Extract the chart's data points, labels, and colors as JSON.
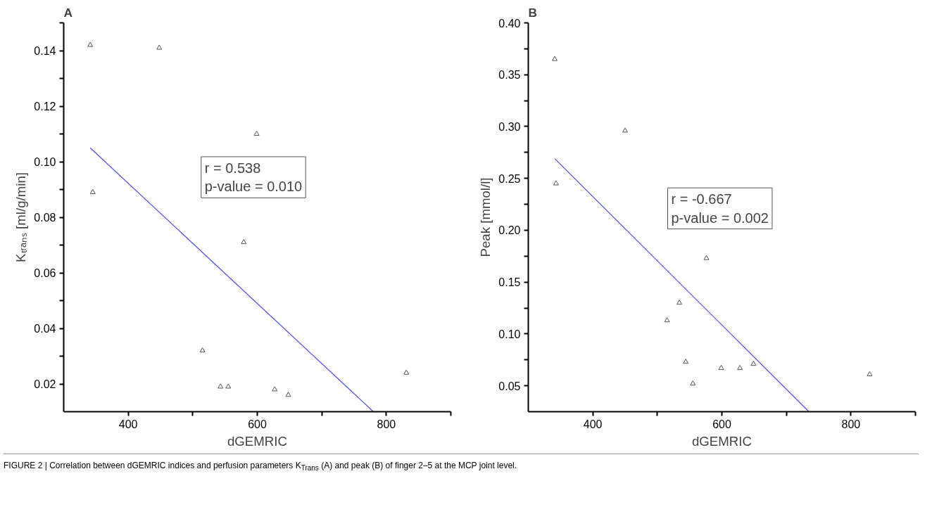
{
  "chart_data": [
    {
      "type": "scatter",
      "title": "A",
      "xlabel": "dGEMRIC",
      "ylabel": "Kₜᵣₐₙₛ [ml/g/min]",
      "xlim": [
        300,
        900
      ],
      "xticks": [
        {
          "value": 400,
          "label": "400"
        },
        {
          "value": 500,
          "label": null
        },
        {
          "value": 600,
          "label": "600"
        },
        {
          "value": 700,
          "label": null
        },
        {
          "value": 800,
          "label": "800"
        },
        {
          "value": 900,
          "label": null
        }
      ],
      "ylim": [
        0.01,
        0.15
      ],
      "yticks": [
        {
          "value": 0.02,
          "label": "0.02"
        },
        {
          "value": 0.03,
          "label": null
        },
        {
          "value": 0.04,
          "label": "0.04"
        },
        {
          "value": 0.05,
          "label": null
        },
        {
          "value": 0.06,
          "label": "0.06"
        },
        {
          "value": 0.07,
          "label": null
        },
        {
          "value": 0.08,
          "label": "0.08"
        },
        {
          "value": 0.09,
          "label": null
        },
        {
          "value": 0.1,
          "label": "0.10"
        },
        {
          "value": 0.11,
          "label": null
        },
        {
          "value": 0.12,
          "label": "0.12"
        },
        {
          "value": 0.13,
          "label": null
        },
        {
          "value": 0.14,
          "label": "0.14"
        },
        {
          "value": 0.15,
          "label": null
        }
      ],
      "grid": false,
      "series": [
        {
          "marker": "triangle",
          "color": "#555555",
          "x": [
            341,
            448,
            599,
            345,
            579,
            515,
            543,
            555,
            627,
            648,
            831
          ],
          "values": [
            0.142,
            0.141,
            0.11,
            0.089,
            0.071,
            0.032,
            0.019,
            0.019,
            0.018,
            0.016,
            0.024
          ]
        },
        {
          "type": "line",
          "marker": "none",
          "color": "#4a4aff",
          "x": [
            341,
            780
          ],
          "values": [
            0.105,
            0.01
          ]
        }
      ],
      "annotations": [
        "r = 0.538\np-value = 0.010",
        "FIGURE 2 | Correlation between dGEMRIC indices and perfusion parameters K$_{Trans}$ (A) and peak (B) of finger 2–5 at the MCP joint level."
      ]
    },
    {
      "type": "scatter",
      "title": "B",
      "xlabel": "dGEMRIC",
      "ylabel": "Peak [mmol/l]",
      "xlim": [
        300,
        900
      ],
      "xticks": [
        {
          "value": 400,
          "label": "400"
        },
        {
          "value": 500,
          "label": null
        },
        {
          "value": 600,
          "label": "600"
        },
        {
          "value": 700,
          "label": null
        },
        {
          "value": 800,
          "label": "800"
        },
        {
          "value": 900,
          "label": null
        }
      ],
      "ylim": [
        0.025,
        0.4
      ],
      "yticks": [
        {
          "value": 0.05,
          "label": "0.05"
        },
        {
          "value": 0.075,
          "label": null
        },
        {
          "value": 0.1,
          "label": "0.10"
        },
        {
          "value": 0.125,
          "label": null
        },
        {
          "value": 0.15,
          "label": "0.15"
        },
        {
          "value": 0.175,
          "label": null
        },
        {
          "value": 0.2,
          "label": "0.20"
        },
        {
          "value": 0.225,
          "label": null
        },
        {
          "value": 0.25,
          "label": "0.25"
        },
        {
          "value": 0.275,
          "label": null
        },
        {
          "value": 0.3,
          "label": "0.30"
        },
        {
          "value": 0.325,
          "label": null
        },
        {
          "value": 0.35,
          "label": "0.35"
        },
        {
          "value": 0.375,
          "label": null
        },
        {
          "value": 0.4,
          "label": "0.40"
        }
      ],
      "grid": false,
      "series": [
        {
          "marker": "triangle",
          "color": "#555555",
          "x": [
            341,
            450,
            343,
            576,
            534,
            515,
            544,
            599,
            628,
            649,
            555,
            829
          ],
          "values": [
            0.365,
            0.296,
            0.245,
            0.173,
            0.13,
            0.113,
            0.073,
            0.067,
            0.067,
            0.071,
            0.052,
            0.061
          ]
        },
        {
          "type": "line",
          "marker": "none",
          "color": "#4a4aff",
          "x": [
            341,
            735
          ],
          "values": [
            0.269,
            0.025
          ]
        }
      ],
      "annotations": [
        "r = -0.667\np-value = 0.002"
      ]
    }
  ]
}
